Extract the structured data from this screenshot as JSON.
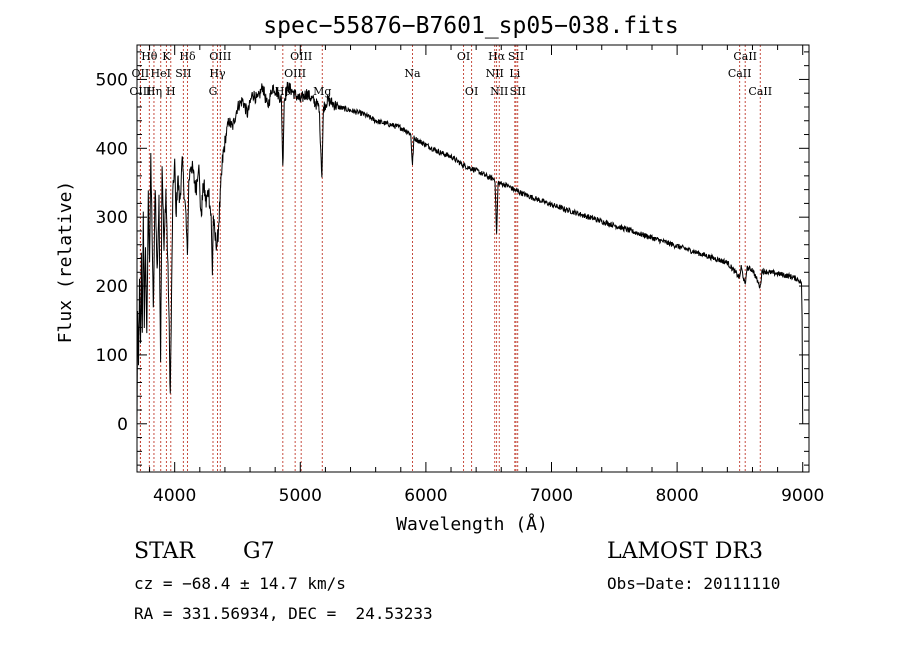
{
  "chart_data": {
    "type": "line",
    "title": "spec−55876−B7601_sp05−038.fits",
    "xlabel": "Wavelength (Å)",
    "ylabel": "Flux (relative)",
    "xlim": [
      3700,
      9050
    ],
    "ylim": [
      -70,
      550
    ],
    "xticks": [
      4000,
      5000,
      6000,
      7000,
      8000,
      9000
    ],
    "yticks": [
      0,
      100,
      200,
      300,
      400,
      500
    ],
    "minor_xstep": 200,
    "minor_ystep": 20,
    "series": [
      {
        "name": "flux",
        "anchors": [
          [
            3700,
            0
          ],
          [
            3705,
            160
          ],
          [
            3712,
            80
          ],
          [
            3720,
            200
          ],
          [
            3728,
            110
          ],
          [
            3735,
            240
          ],
          [
            3742,
            130
          ],
          [
            3750,
            300
          ],
          [
            3758,
            150
          ],
          [
            3768,
            260
          ],
          [
            3778,
            120
          ],
          [
            3790,
            330
          ],
          [
            3800,
            240
          ],
          [
            3810,
            380
          ],
          [
            3820,
            280
          ],
          [
            3830,
            160
          ],
          [
            3845,
            350
          ],
          [
            3860,
            220
          ],
          [
            3875,
            320
          ],
          [
            3888,
            100
          ],
          [
            3900,
            380
          ],
          [
            3915,
            250
          ],
          [
            3930,
            340
          ],
          [
            3950,
            200
          ],
          [
            3965,
            40
          ],
          [
            3972,
            140
          ],
          [
            3985,
            330
          ],
          [
            4000,
            380
          ],
          [
            4010,
            300
          ],
          [
            4025,
            360
          ],
          [
            4040,
            320
          ],
          [
            4060,
            380
          ],
          [
            4075,
            340
          ],
          [
            4090,
            300
          ],
          [
            4101,
            240
          ],
          [
            4112,
            350
          ],
          [
            4130,
            380
          ],
          [
            4150,
            360
          ],
          [
            4170,
            340
          ],
          [
            4190,
            380
          ],
          [
            4210,
            300
          ],
          [
            4230,
            350
          ],
          [
            4250,
            320
          ],
          [
            4270,
            340
          ],
          [
            4290,
            300
          ],
          [
            4300,
            220
          ],
          [
            4308,
            300
          ],
          [
            4320,
            270
          ],
          [
            4340,
            260
          ],
          [
            4360,
            320
          ],
          [
            4380,
            380
          ],
          [
            4400,
            410
          ],
          [
            4430,
            440
          ],
          [
            4460,
            430
          ],
          [
            4500,
            460
          ],
          [
            4540,
            470
          ],
          [
            4580,
            450
          ],
          [
            4620,
            480
          ],
          [
            4660,
            470
          ],
          [
            4700,
            490
          ],
          [
            4740,
            460
          ],
          [
            4780,
            490
          ],
          [
            4820,
            480
          ],
          [
            4850,
            470
          ],
          [
            4861,
            370
          ],
          [
            4872,
            470
          ],
          [
            4900,
            490
          ],
          [
            4950,
            480
          ],
          [
            5000,
            470
          ],
          [
            5050,
            480
          ],
          [
            5100,
            470
          ],
          [
            5150,
            460
          ],
          [
            5172,
            360
          ],
          [
            5185,
            460
          ],
          [
            5220,
            470
          ],
          [
            5300,
            460
          ],
          [
            5400,
            455
          ],
          [
            5500,
            450
          ],
          [
            5600,
            440
          ],
          [
            5700,
            435
          ],
          [
            5800,
            430
          ],
          [
            5850,
            425
          ],
          [
            5880,
            420
          ],
          [
            5893,
            375
          ],
          [
            5905,
            415
          ],
          [
            5950,
            410
          ],
          [
            6000,
            405
          ],
          [
            6100,
            395
          ],
          [
            6200,
            388
          ],
          [
            6300,
            375
          ],
          [
            6400,
            368
          ],
          [
            6500,
            358
          ],
          [
            6550,
            355
          ],
          [
            6563,
            275
          ],
          [
            6575,
            350
          ],
          [
            6650,
            346
          ],
          [
            6700,
            340
          ],
          [
            6800,
            332
          ],
          [
            6900,
            325
          ],
          [
            7000,
            318
          ],
          [
            7200,
            306
          ],
          [
            7400,
            294
          ],
          [
            7600,
            282
          ],
          [
            7800,
            270
          ],
          [
            8000,
            258
          ],
          [
            8200,
            246
          ],
          [
            8400,
            234
          ],
          [
            8498,
            212
          ],
          [
            8510,
            228
          ],
          [
            8542,
            200
          ],
          [
            8555,
            226
          ],
          [
            8600,
            224
          ],
          [
            8662,
            198
          ],
          [
            8675,
            222
          ],
          [
            8800,
            218
          ],
          [
            8900,
            214
          ],
          [
            8960,
            210
          ],
          [
            8990,
            205
          ],
          [
            8995,
            150
          ],
          [
            9000,
            0
          ]
        ]
      }
    ],
    "line_markers": [
      {
        "label": "Hθ",
        "x": 3798,
        "row": 0
      },
      {
        "label": "OII",
        "x": 3727,
        "row": 1
      },
      {
        "label": "OIII",
        "x": 3727,
        "row": 2
      },
      {
        "label": "HeI",
        "x": 3889,
        "row": 1
      },
      {
        "label": "K",
        "x": 3934,
        "row": 0
      },
      {
        "label": "Hη",
        "x": 3835,
        "row": 2
      },
      {
        "label": "H",
        "x": 3969,
        "row": 2
      },
      {
        "label": "Hδ",
        "x": 4102,
        "row": 0
      },
      {
        "label": "SII",
        "x": 4069,
        "row": 1
      },
      {
        "label": "OIII",
        "x": 4363,
        "row": 0
      },
      {
        "label": "Hγ",
        "x": 4341,
        "row": 1
      },
      {
        "label": "G",
        "x": 4305,
        "row": 2
      },
      {
        "label": "Hβ",
        "x": 4861,
        "row": 2
      },
      {
        "label": "OIII",
        "x": 5007,
        "row": 0
      },
      {
        "label": "OIII",
        "x": 4959,
        "row": 1
      },
      {
        "label": "Mg",
        "x": 5175,
        "row": 2
      },
      {
        "label": "Na",
        "x": 5893,
        "row": 1
      },
      {
        "label": "OI",
        "x": 6300,
        "row": 0
      },
      {
        "label": "OI",
        "x": 6364,
        "row": 2
      },
      {
        "label": "Hα",
        "x": 6563,
        "row": 0
      },
      {
        "label": "NII",
        "x": 6548,
        "row": 1
      },
      {
        "label": "NII",
        "x": 6584,
        "row": 2
      },
      {
        "label": "SII",
        "x": 6717,
        "row": 0
      },
      {
        "label": "Li",
        "x": 6708,
        "row": 1
      },
      {
        "label": "SII",
        "x": 6731,
        "row": 2
      },
      {
        "label": "CaII",
        "x": 8542,
        "row": 0
      },
      {
        "label": "CaII",
        "x": 8498,
        "row": 1
      },
      {
        "label": "CaII",
        "x": 8662,
        "row": 2
      }
    ]
  },
  "info": {
    "class_label": "STAR",
    "subclass_label": "G7",
    "survey": "LAMOST DR3",
    "cz": "cz = −68.4 ± 14.7 km/s",
    "obs_date": "Obs−Date: 20111110",
    "coords": "RA = 331.56934, DEC =  24.53233"
  }
}
